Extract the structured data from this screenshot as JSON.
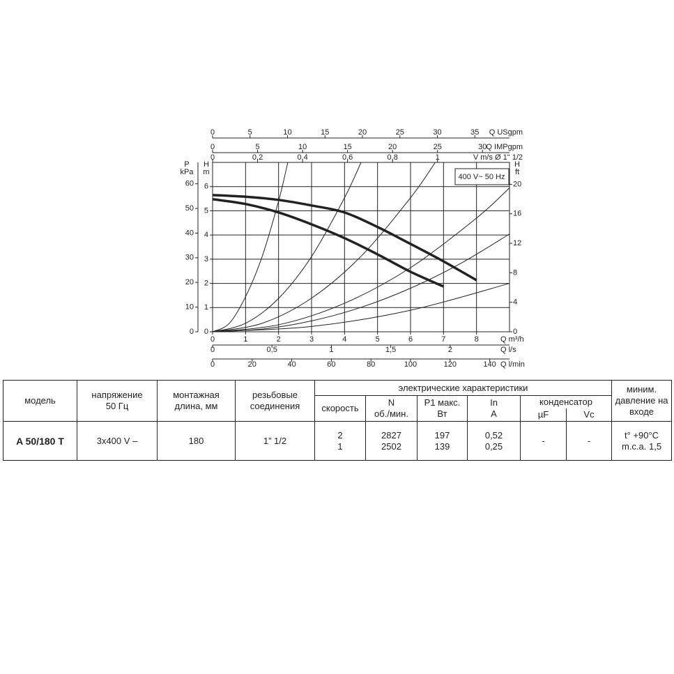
{
  "chart_data": {
    "type": "line",
    "legend_box": "400 V~ 50 Hz",
    "xlabel": "Q m³/h",
    "xlim": [
      0,
      9
    ],
    "xticks": [
      0,
      1,
      2,
      3,
      4,
      5,
      6,
      7,
      8
    ],
    "ylabel": "H",
    "yunit": "m",
    "ylim": [
      0,
      7
    ],
    "yticks": [
      0,
      1,
      2,
      3,
      4,
      5,
      6
    ],
    "grid": true,
    "left_axis": {
      "label": "P",
      "unit": "kPa",
      "lim": [
        0,
        68.67
      ],
      "ticks": [
        0,
        10,
        20,
        30,
        40,
        50,
        60
      ]
    },
    "right_axis": {
      "label": "H",
      "unit": "ft",
      "lim": [
        0,
        22.97
      ],
      "ticks": [
        0,
        4,
        8,
        12,
        16,
        20
      ]
    },
    "top_axes": [
      {
        "label": "Q USgpm",
        "lim": [
          0,
          39.63
        ],
        "ticks": [
          0,
          5,
          10,
          15,
          20,
          25,
          30,
          35
        ]
      },
      {
        "label": "Q IMPgpm",
        "lim": [
          0,
          33
        ],
        "ticks": [
          0,
          5,
          10,
          15,
          20,
          25,
          30
        ]
      },
      {
        "label": "V m/s Ø 1\" 1/2",
        "lim": [
          0,
          1.32
        ],
        "ticks": [
          0,
          {
            "value": 0.2,
            "label": "0,2"
          },
          {
            "value": 0.4,
            "label": "0,4"
          },
          {
            "value": 0.6,
            "label": "0,6"
          },
          {
            "value": 0.8,
            "label": "0,8"
          },
          1
        ]
      }
    ],
    "bottom_axes": [
      {
        "label": "Q l/s",
        "lim": [
          0,
          2.5
        ],
        "ticks": [
          0,
          {
            "value": 0.5,
            "label": "0,5"
          },
          1,
          {
            "value": 1.5,
            "label": "1,5"
          },
          2
        ]
      },
      {
        "label": "Q l/min",
        "lim": [
          0,
          150
        ],
        "ticks": [
          0,
          20,
          40,
          60,
          80,
          100,
          120,
          140
        ]
      }
    ],
    "series": [
      {
        "color": "#222",
        "width": 3.5,
        "x": [
          0,
          1,
          2,
          3,
          4,
          5,
          6,
          7,
          8
        ],
        "values": [
          5.65,
          5.58,
          5.45,
          5.22,
          4.93,
          4.33,
          3.63,
          2.91,
          2.13
        ]
      },
      {
        "color": "#222",
        "width": 3.5,
        "x": [
          0,
          1,
          2,
          3,
          4,
          5,
          6,
          7
        ],
        "values": [
          5.48,
          5.28,
          4.93,
          4.44,
          3.87,
          3.2,
          2.48,
          1.87
        ]
      },
      {
        "color": "#222",
        "width": 1,
        "x": [
          0,
          0.5,
          1,
          1.5,
          2,
          2.28
        ],
        "values": [
          0,
          0.34,
          1.45,
          3.1,
          5.4,
          7.0
        ]
      },
      {
        "color": "#222",
        "width": 1,
        "x": [
          0,
          1,
          2,
          3,
          4,
          4.5
        ],
        "values": [
          0,
          0.35,
          1.38,
          3.11,
          5.54,
          7.0
        ]
      },
      {
        "color": "#222",
        "width": 1,
        "x": [
          0,
          1.5,
          3,
          4.5,
          6,
          6.75
        ],
        "values": [
          0,
          0.35,
          1.39,
          3.12,
          5.54,
          7.0
        ]
      },
      {
        "color": "#222",
        "width": 1,
        "x": [
          0,
          2,
          4,
          6,
          8,
          9
        ],
        "values": [
          0,
          0.29,
          1.18,
          2.65,
          4.7,
          5.95
        ]
      },
      {
        "color": "#222",
        "width": 1,
        "x": [
          0,
          1.5,
          3,
          4.5,
          6,
          7.5,
          9
        ],
        "values": [
          0,
          0.11,
          0.45,
          1.01,
          1.8,
          2.81,
          4.04
        ]
      },
      {
        "color": "#222",
        "width": 1,
        "x": [
          0,
          3,
          6,
          9
        ],
        "values": [
          0,
          0.22,
          0.89,
          2.0
        ]
      }
    ]
  },
  "table": {
    "headers": {
      "model": "модель",
      "voltage": "напряжение\n50 Гц",
      "length": "монтажная\nдлина, мм",
      "threads": "резьбовые\nсоединения",
      "electrical": "электрические характеристики",
      "speed": "скорость",
      "rpm": "N\nоб./мин.",
      "p1": "P1 макс.\nВт",
      "current": "In\nA",
      "capacitor": "конденсатор",
      "uf": "µF",
      "vc": "Vc",
      "min_pressure": "миним.\nдавление на\nвходе"
    },
    "rows": [
      {
        "model": "A 50/180 T",
        "voltage": "3x400 V –",
        "length": 180,
        "threads": "1” 1/2",
        "speeds": [
          "2",
          "1"
        ],
        "rpm": [
          2827,
          2502
        ],
        "p1": [
          197,
          139
        ],
        "current": [
          "0,52",
          "0,25"
        ],
        "uf": "-",
        "vc": "-",
        "min_pressure": [
          "t° +90°C",
          "m.c.a. 1,5"
        ]
      }
    ]
  }
}
